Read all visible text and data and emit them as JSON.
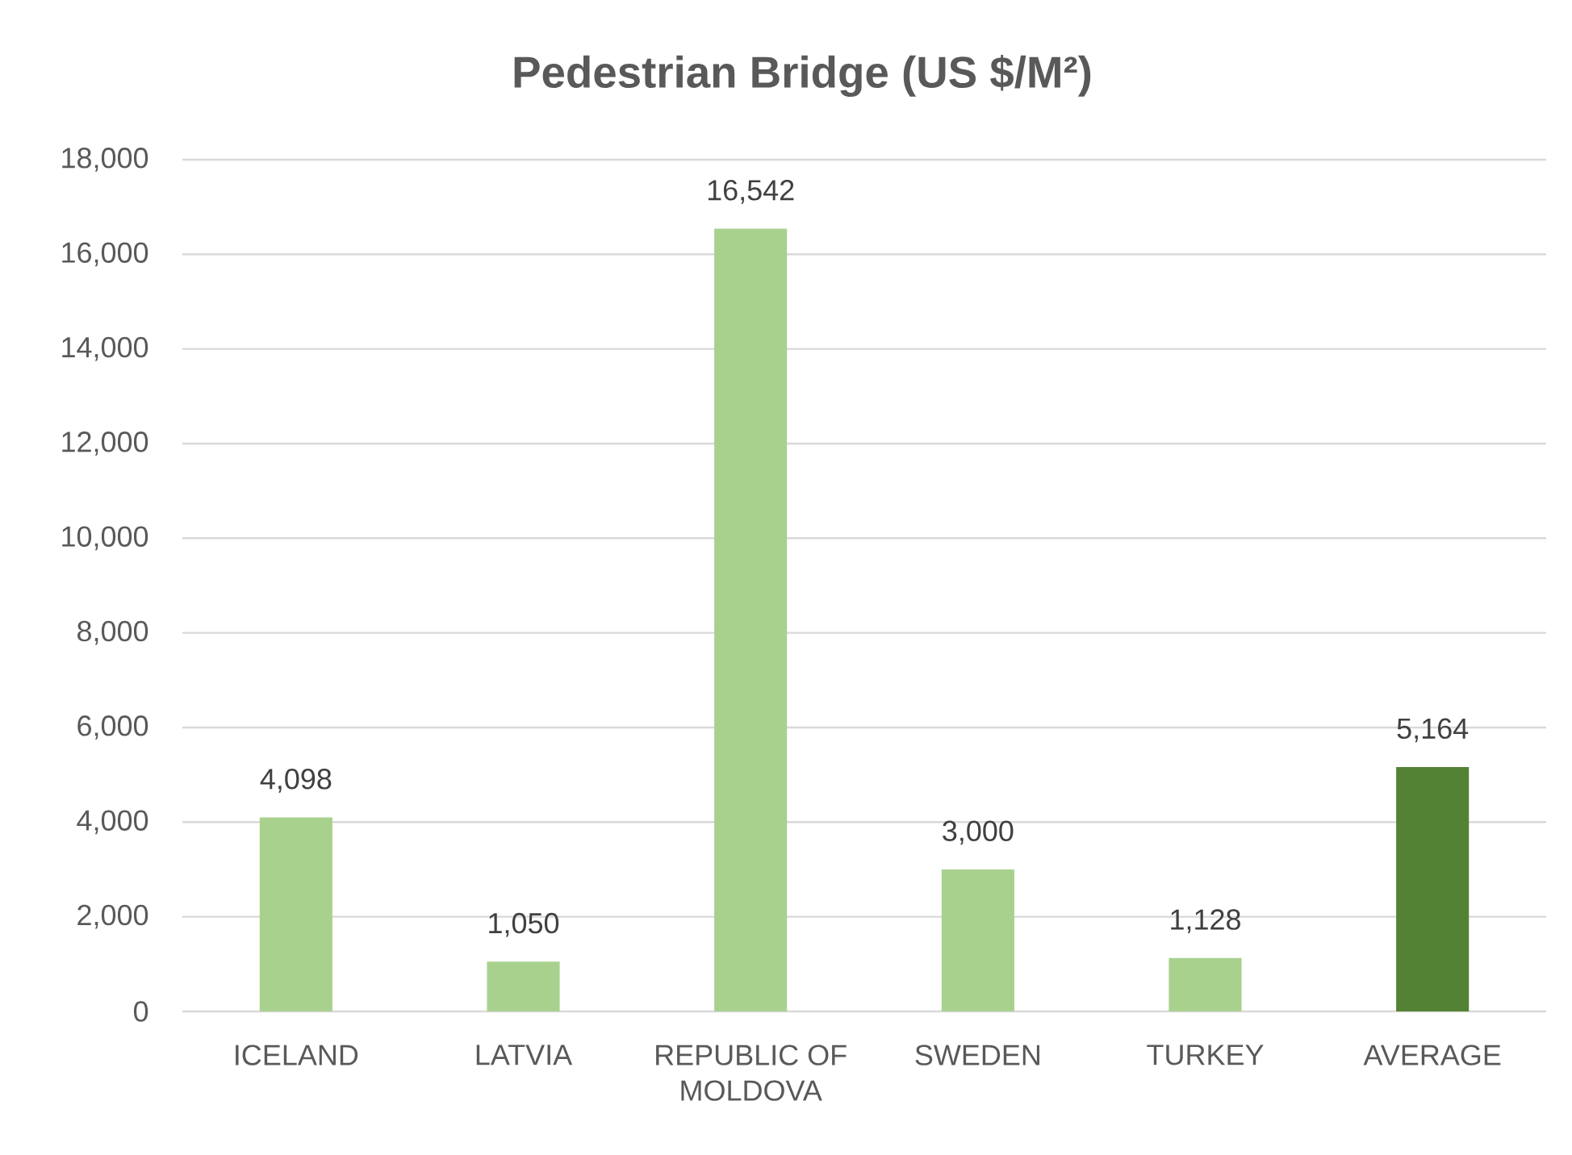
{
  "chart_data": {
    "type": "bar",
    "title": "Pedestrian Bridge (US $/M²)",
    "categories": [
      "ICELAND",
      "LATVIA",
      "REPUBLIC OF MOLDOVA",
      "SWEDEN",
      "TURKEY",
      "AVERAGE"
    ],
    "values": [
      4098,
      1050,
      16542,
      3000,
      1128,
      5164
    ],
    "colors": [
      "#a9d18e",
      "#a9d18e",
      "#a9d18e",
      "#a9d18e",
      "#a9d18e",
      "#548235"
    ],
    "value_labels": [
      "4,098",
      "1,050",
      "16,542",
      "3,000",
      "1,128",
      "5,164"
    ],
    "ylim": [
      0,
      18000
    ],
    "yticks": [
      {
        "value": 0,
        "label": "0"
      },
      {
        "value": 2000,
        "label": "2,000"
      },
      {
        "value": 4000,
        "label": "4,000"
      },
      {
        "value": 6000,
        "label": "6,000"
      },
      {
        "value": 8000,
        "label": "8,000"
      },
      {
        "value": 10000,
        "label": "10,000"
      },
      {
        "value": 12000,
        "label": "12,000"
      },
      {
        "value": 14000,
        "label": "14,000"
      },
      {
        "value": 16000,
        "label": "16,000"
      },
      {
        "value": 18000,
        "label": "18,000"
      }
    ],
    "grid": "y"
  }
}
